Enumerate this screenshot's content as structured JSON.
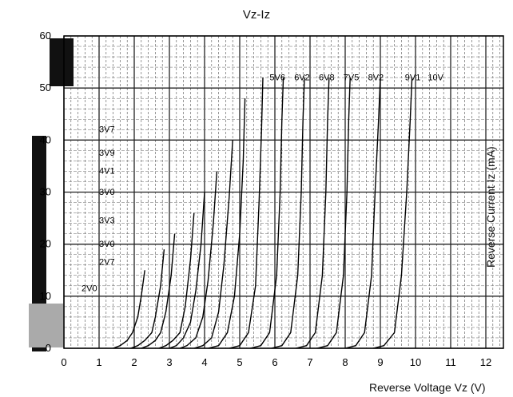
{
  "chart_data": {
    "type": "line",
    "title": "Vz-Iz",
    "xlabel": "Reverse Voltage Vz (V)",
    "ylabel": "Reverse Current Iz (mA)",
    "xlim": [
      0,
      12.5
    ],
    "ylim": [
      0,
      60
    ],
    "x_ticks": [
      "0",
      "1",
      "2",
      "3",
      "4",
      "5",
      "6",
      "7",
      "8",
      "9",
      "10",
      "11",
      "12"
    ],
    "y_ticks": [
      "0",
      "10",
      "20",
      "30",
      "40",
      "50",
      "60"
    ],
    "grid": true,
    "series": [
      {
        "name": "2V0",
        "points": [
          [
            1.4,
            0
          ],
          [
            1.6,
            0.5
          ],
          [
            1.8,
            1.5
          ],
          [
            1.95,
            3
          ],
          [
            2.1,
            6
          ],
          [
            2.2,
            10
          ],
          [
            2.3,
            15
          ]
        ]
      },
      {
        "name": "2V7",
        "points": [
          [
            1.9,
            0
          ],
          [
            2.1,
            0.5
          ],
          [
            2.3,
            1.5
          ],
          [
            2.5,
            3
          ],
          [
            2.6,
            6
          ],
          [
            2.75,
            12
          ],
          [
            2.85,
            19
          ]
        ]
      },
      {
        "name": "3V0",
        "points": [
          [
            2.2,
            0
          ],
          [
            2.4,
            0.5
          ],
          [
            2.6,
            1.5
          ],
          [
            2.75,
            3
          ],
          [
            2.9,
            7
          ],
          [
            3.05,
            14
          ],
          [
            3.15,
            22
          ]
        ]
      },
      {
        "name": "3V6",
        "points": [
          [
            2.7,
            0
          ],
          [
            2.9,
            0.5
          ],
          [
            3.1,
            1.5
          ],
          [
            3.3,
            3
          ],
          [
            3.45,
            8
          ],
          [
            3.6,
            17
          ],
          [
            3.7,
            26
          ]
        ]
      },
      {
        "name": "3V9",
        "points": [
          [
            3.0,
            0
          ],
          [
            3.2,
            0.5
          ],
          [
            3.4,
            2
          ],
          [
            3.6,
            5
          ],
          [
            3.75,
            11
          ],
          [
            3.9,
            20
          ],
          [
            4.0,
            30
          ]
        ]
      },
      {
        "name": "4V3",
        "points": [
          [
            3.3,
            0
          ],
          [
            3.5,
            0.5
          ],
          [
            3.75,
            2
          ],
          [
            3.95,
            6
          ],
          [
            4.1,
            13
          ],
          [
            4.25,
            24
          ],
          [
            4.35,
            34
          ]
        ]
      },
      {
        "name": "4V7",
        "points": [
          [
            3.7,
            0
          ],
          [
            3.95,
            0.5
          ],
          [
            4.2,
            2
          ],
          [
            4.4,
            7
          ],
          [
            4.55,
            16
          ],
          [
            4.7,
            29
          ],
          [
            4.8,
            40
          ]
        ]
      },
      {
        "name": "5V1",
        "points": [
          [
            4.1,
            0
          ],
          [
            4.4,
            0.5
          ],
          [
            4.65,
            3
          ],
          [
            4.85,
            10
          ],
          [
            5.0,
            22
          ],
          [
            5.1,
            36
          ],
          [
            5.15,
            48
          ]
        ]
      },
      {
        "name": "5V6",
        "points": [
          [
            4.7,
            0
          ],
          [
            5.0,
            0.5
          ],
          [
            5.25,
            3
          ],
          [
            5.45,
            12
          ],
          [
            5.55,
            28
          ],
          [
            5.62,
            42
          ],
          [
            5.66,
            52
          ]
        ]
      },
      {
        "name": "6V2",
        "points": [
          [
            5.3,
            0
          ],
          [
            5.6,
            0.5
          ],
          [
            5.85,
            3
          ],
          [
            6.05,
            14
          ],
          [
            6.15,
            30
          ],
          [
            6.2,
            44
          ],
          [
            6.24,
            52
          ]
        ]
      },
      {
        "name": "6V8",
        "points": [
          [
            5.9,
            0
          ],
          [
            6.2,
            0.5
          ],
          [
            6.45,
            3
          ],
          [
            6.65,
            14
          ],
          [
            6.75,
            30
          ],
          [
            6.8,
            44
          ],
          [
            6.84,
            52
          ]
        ]
      },
      {
        "name": "7V5",
        "points": [
          [
            6.6,
            0
          ],
          [
            6.9,
            0.5
          ],
          [
            7.15,
            3
          ],
          [
            7.35,
            14
          ],
          [
            7.45,
            30
          ],
          [
            7.5,
            44
          ],
          [
            7.54,
            52
          ]
        ]
      },
      {
        "name": "8V2",
        "points": [
          [
            7.2,
            0
          ],
          [
            7.5,
            0.5
          ],
          [
            7.75,
            3
          ],
          [
            7.95,
            14
          ],
          [
            8.05,
            30
          ],
          [
            8.1,
            44
          ],
          [
            8.14,
            52
          ]
        ]
      },
      {
        "name": "9V1",
        "points": [
          [
            8.0,
            0
          ],
          [
            8.3,
            0.5
          ],
          [
            8.55,
            3
          ],
          [
            8.75,
            14
          ],
          [
            8.85,
            30
          ],
          [
            8.95,
            44
          ],
          [
            9.0,
            52
          ]
        ]
      },
      {
        "name": "10V",
        "points": [
          [
            8.8,
            0
          ],
          [
            9.1,
            0.5
          ],
          [
            9.4,
            3
          ],
          [
            9.6,
            14
          ],
          [
            9.75,
            30
          ],
          [
            9.85,
            44
          ],
          [
            9.9,
            52
          ]
        ]
      }
    ],
    "series_labels": [
      {
        "name": "5V6",
        "x": 5.85,
        "y": 51.5
      },
      {
        "name": "6V2",
        "x": 6.55,
        "y": 51.5
      },
      {
        "name": "6V8",
        "x": 7.25,
        "y": 51.5
      },
      {
        "name": "7V5",
        "x": 7.95,
        "y": 51.5
      },
      {
        "name": "8V2",
        "x": 8.65,
        "y": 51.5
      },
      {
        "name": "9V1",
        "x": 9.7,
        "y": 51.5
      },
      {
        "name": "10V",
        "x": 10.35,
        "y": 51.5
      },
      {
        "name": "3V7",
        "x": 1.0,
        "y": 41.5
      },
      {
        "name": "3V9",
        "x": 1.0,
        "y": 37.0
      },
      {
        "name": "4V1",
        "x": 1.0,
        "y": 33.5
      },
      {
        "name": "3V0",
        "x": 1.0,
        "y": 29.5
      },
      {
        "name": "3V3",
        "x": 1.0,
        "y": 24.0
      },
      {
        "name": "3V0",
        "x": 1.0,
        "y": 19.5
      },
      {
        "name": "2V7",
        "x": 1.0,
        "y": 16.0
      },
      {
        "name": "2V0",
        "x": 0.5,
        "y": 11.0
      }
    ]
  }
}
